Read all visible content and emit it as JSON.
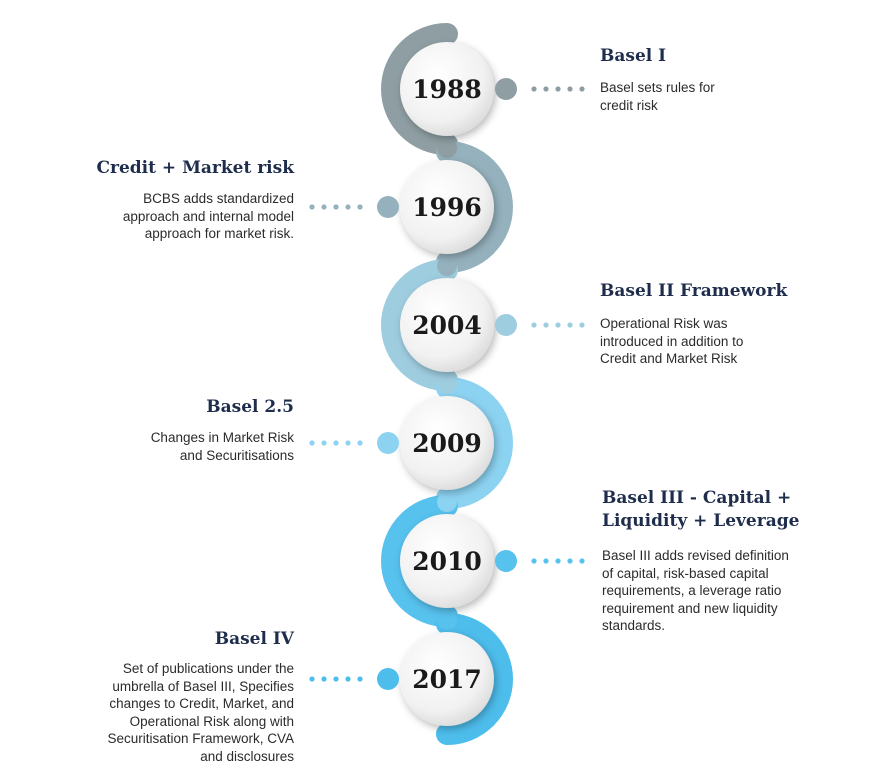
{
  "colors": {
    "band1": "#8e9ea2",
    "band2": "#95b1bd",
    "band3": "#9fcde0",
    "band4": "#8cd3f2",
    "band5": "#57c2ee",
    "band6": "#4dbdec",
    "title": "#1f2d4d"
  },
  "milestones": [
    {
      "year": "1988",
      "title": "Basel I",
      "description": "Basel sets rules for\ncredit risk",
      "side": "right"
    },
    {
      "year": "1996",
      "title": "Credit + Market risk",
      "description": "BCBS adds standardized\napproach and internal model\napproach for market risk.",
      "side": "left"
    },
    {
      "year": "2004",
      "title": "Basel II Framework",
      "description": "Operational Risk was\nintroduced in addition to\nCredit and Market Risk",
      "side": "right"
    },
    {
      "year": "2009",
      "title": "Basel 2.5",
      "description": "Changes in Market Risk\nand Securitisations",
      "side": "left"
    },
    {
      "year": "2010",
      "title": "Basel III - Capital +\nLiquidity + Leverage",
      "description": "Basel III adds revised definition\nof capital, risk-based capital\nrequirements, a leverage ratio\nrequirement and new liquidity\nstandards.",
      "side": "right"
    },
    {
      "year": "2017",
      "title": "Basel IV",
      "description": "Set of publications under the\numbrella of Basel III, Specifies\nchanges to Credit, Market, and\nOperational Risk along with\nSecuritisation Framework, CVA\nand disclosures",
      "side": "left"
    }
  ]
}
